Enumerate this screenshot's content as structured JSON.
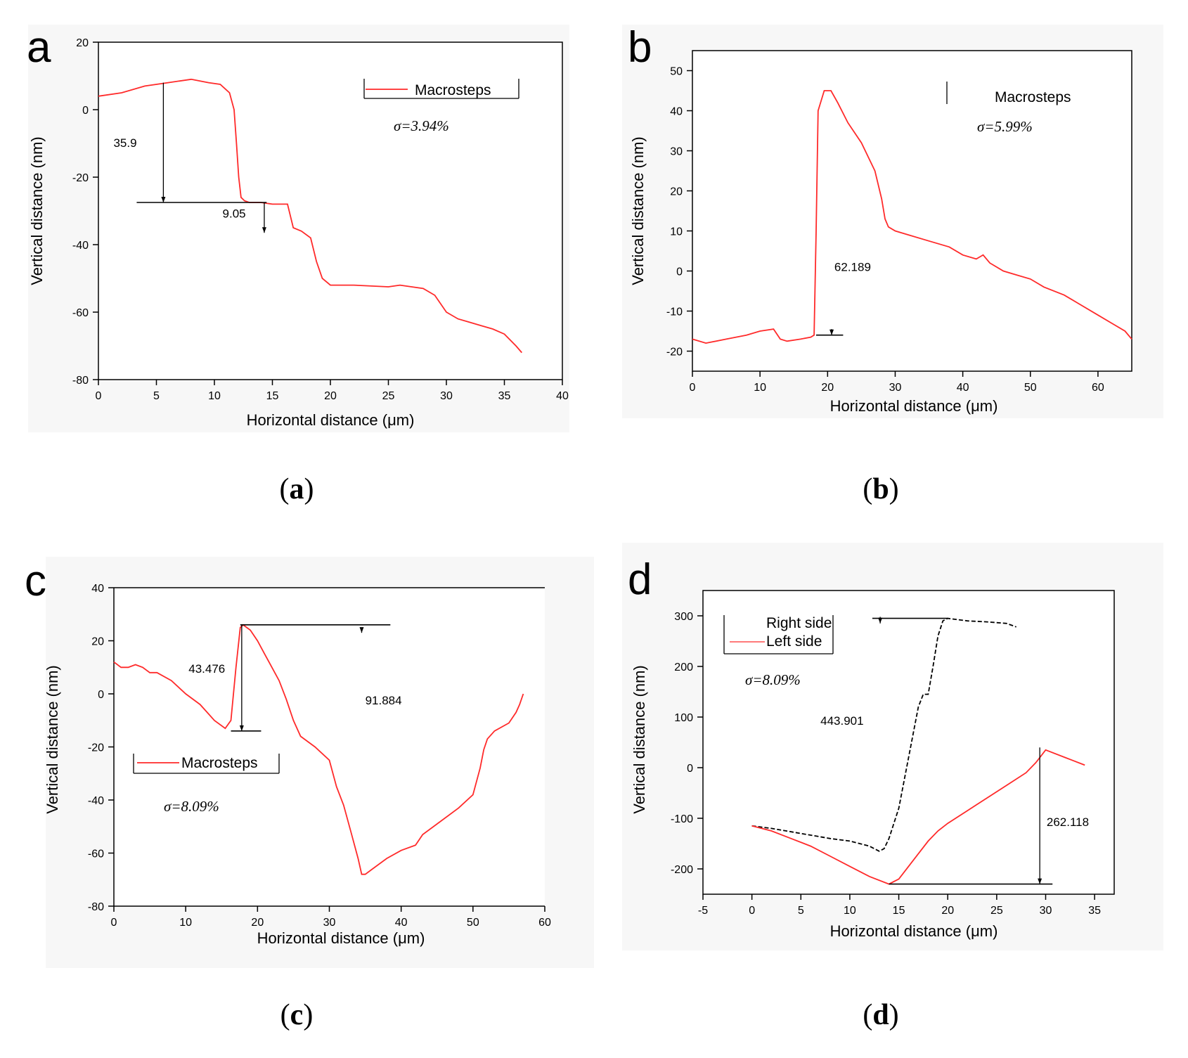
{
  "chart_data": [
    {
      "type": "line",
      "panel_letter": "a",
      "caption": "a",
      "xlabel": "Horizontal distance (μm)",
      "ylabel": "Vertical distance (nm)",
      "xlim": [
        0,
        40
      ],
      "ylim": [
        -80,
        20
      ],
      "xticks": [
        0,
        5,
        10,
        15,
        20,
        25,
        30,
        35,
        40
      ],
      "yticks": [
        -80,
        -60,
        -40,
        -20,
        0,
        20
      ],
      "grid": false,
      "legend_placement": "top-right",
      "series": [
        {
          "name": "Macrosteps",
          "color": "#ff2a2a",
          "style": "solid",
          "x": [
            0,
            2,
            4,
            6,
            8,
            9.5,
            10.5,
            11.3,
            11.7,
            11.9,
            12.1,
            12.3,
            12.6,
            13,
            14,
            15,
            16.3,
            16.8,
            17.5,
            18.3,
            18.8,
            19.3,
            20,
            22,
            25,
            26,
            27,
            28,
            29,
            30,
            31,
            32,
            33,
            34,
            35,
            36,
            36.5
          ],
          "y": [
            4,
            5,
            7,
            8,
            9,
            8,
            7.5,
            5,
            0,
            -10,
            -20,
            -26,
            -27,
            -27.5,
            -27.5,
            -28,
            -28,
            -35,
            -36,
            -38,
            -45,
            -50,
            -52,
            -52,
            -52.5,
            -52,
            -52.5,
            -53,
            -55,
            -60,
            -62,
            -63,
            -64,
            -65,
            -66.5,
            -70,
            -72
          ]
        }
      ],
      "annotations": [
        {
          "text": "35.9",
          "x": 1.3,
          "y": -11
        },
        {
          "text": "9.05",
          "x": 10.7,
          "y": -32
        },
        {
          "type": "hline",
          "y": -27.5,
          "x0": 3.3,
          "x1": 14.5
        },
        {
          "type": "arrow",
          "x": 5.6,
          "y0": 8,
          "y1": -27.5
        },
        {
          "type": "arrow",
          "x": 14.3,
          "y0": -27.5,
          "y1": -36.5
        }
      ],
      "sigma_text": "σ=3.94%"
    },
    {
      "type": "line",
      "panel_letter": "b",
      "caption": "b",
      "xlabel": "Horizontal distance (μm)",
      "ylabel": "Vertical distance (nm)",
      "xlim": [
        0,
        65
      ],
      "ylim": [
        -25,
        55
      ],
      "xticks": [
        0,
        10,
        20,
        30,
        40,
        50,
        60
      ],
      "yticks": [
        -20,
        -10,
        0,
        10,
        20,
        30,
        40,
        50
      ],
      "grid": false,
      "legend_placement": "top-right",
      "series": [
        {
          "name": "Macrosteps",
          "color": "#ff2a2a",
          "style": "solid",
          "x": [
            0,
            2,
            5,
            8,
            10,
            12,
            13,
            14,
            16,
            17.5,
            18,
            18.3,
            18.6,
            19.5,
            20.5,
            21.5,
            23,
            25,
            27,
            28,
            28.5,
            29,
            30,
            32,
            35,
            38,
            40,
            42,
            43,
            44,
            46,
            48,
            50,
            52,
            55,
            57,
            60,
            62,
            64,
            65
          ],
          "y": [
            -17,
            -18,
            -17,
            -16,
            -15,
            -14.5,
            -17,
            -17.5,
            -17,
            -16.5,
            -16,
            10,
            40,
            45,
            45,
            42,
            37,
            32,
            25,
            18,
            13,
            11,
            10,
            9,
            7.5,
            6,
            4,
            3,
            4,
            2,
            0,
            -1,
            -2,
            -4,
            -6,
            -8,
            -11,
            -13,
            -15,
            -17
          ]
        }
      ],
      "annotations": [
        {
          "text": "62.189",
          "x": 21,
          "y": 0
        },
        {
          "type": "hline",
          "y": -16,
          "x0": 18.3,
          "x1": 22.3
        },
        {
          "type": "arrow",
          "x": 20.6,
          "y0": -14.5,
          "y1": -16
        }
      ],
      "sigma_text": "σ=5.99%"
    },
    {
      "type": "line",
      "panel_letter": "c",
      "caption": "c",
      "xlabel": "Horizontal distance (μm)",
      "ylabel": "Vertical distance (nm)",
      "xlim": [
        0,
        60
      ],
      "ylim": [
        -80,
        40
      ],
      "xticks": [
        0,
        10,
        20,
        30,
        40,
        50,
        60
      ],
      "yticks": [
        -80,
        -60,
        -40,
        -20,
        0,
        20,
        40
      ],
      "grid": false,
      "legend_placement": "bottom-left",
      "series": [
        {
          "name": "Macrosteps",
          "color": "#ff2a2a",
          "style": "solid",
          "x": [
            0,
            1,
            2,
            3,
            4,
            5,
            6,
            8,
            10,
            12,
            14,
            15.5,
            16.3,
            17,
            17.6,
            18,
            19,
            20,
            21,
            22,
            23,
            24,
            25,
            26,
            28,
            30,
            31,
            32,
            33,
            34,
            34.5,
            35,
            36,
            38,
            40,
            42,
            43,
            45,
            48,
            50,
            51,
            51.5,
            52,
            53,
            55,
            56,
            56.5,
            57
          ],
          "y": [
            12,
            10,
            10,
            11,
            10,
            8,
            8,
            5,
            0,
            -4,
            -10,
            -13,
            -10,
            10,
            25,
            26,
            24,
            20,
            15,
            10,
            5,
            -2,
            -10,
            -16,
            -20,
            -25,
            -35,
            -42,
            -52,
            -62,
            -68,
            -68,
            -66,
            -62,
            -59,
            -57,
            -53,
            -49,
            -43,
            -38,
            -28,
            -21,
            -17,
            -14,
            -11,
            -7,
            -4,
            0
          ]
        }
      ],
      "annotations": [
        {
          "text": "43.476",
          "x": 10.4,
          "y": 8
        },
        {
          "text": "91.884",
          "x": 35,
          "y": -4
        },
        {
          "type": "hline",
          "y": 26,
          "x0": 17.6,
          "x1": 38.5
        },
        {
          "type": "hline",
          "y": -14,
          "x0": 16.3,
          "x1": 20.5
        },
        {
          "type": "arrow",
          "x": 17.8,
          "y0": 26,
          "y1": -14
        },
        {
          "type": "arrow",
          "x": 34.5,
          "y0": 25,
          "y1": 23
        }
      ],
      "sigma_text": "σ=8.09%"
    },
    {
      "type": "line",
      "panel_letter": "d",
      "caption": "d",
      "xlabel": "Horizontal distance (μm)",
      "ylabel": "Vertical distance (nm)",
      "xlim": [
        -5,
        37
      ],
      "ylim": [
        -250,
        350
      ],
      "xticks": [
        -5,
        0,
        5,
        10,
        15,
        20,
        25,
        30,
        35
      ],
      "yticks": [
        -200,
        -100,
        0,
        100,
        200,
        300
      ],
      "grid": false,
      "legend_placement": "top-left",
      "series": [
        {
          "name": "Right side",
          "color": "#000000",
          "style": "dashed",
          "x": [
            0,
            2,
            5,
            8,
            10,
            12,
            13,
            13.5,
            14,
            15,
            16,
            17,
            17.5,
            18,
            18.5,
            19,
            19.5,
            20,
            22,
            24,
            26,
            27
          ],
          "y": [
            -115,
            -120,
            -130,
            -140,
            -145,
            -155,
            -165,
            -160,
            -140,
            -80,
            20,
            120,
            145,
            145,
            200,
            260,
            290,
            295,
            290,
            288,
            285,
            278
          ]
        },
        {
          "name": "Left side",
          "color": "#ff2a2a",
          "style": "solid",
          "x": [
            0,
            2,
            4,
            6,
            8,
            10,
            12,
            14,
            15,
            16,
            17,
            18,
            19,
            20,
            22,
            24,
            26,
            28,
            29,
            30,
            32,
            34
          ],
          "y": [
            -115,
            -125,
            -140,
            -155,
            -175,
            -195,
            -215,
            -230,
            -220,
            -195,
            -170,
            -145,
            -125,
            -110,
            -85,
            -60,
            -35,
            -10,
            10,
            35,
            20,
            5
          ]
        }
      ],
      "annotations": [
        {
          "text": "443.901",
          "x": 7,
          "y": 85
        },
        {
          "text": "262.118",
          "x": 30.1,
          "y": -115
        },
        {
          "type": "hline",
          "y": 295,
          "x0": 12.3,
          "x1": 20
        },
        {
          "type": "hline",
          "y": -230,
          "x0": 14,
          "x1": 30.7
        },
        {
          "type": "arrow",
          "x": 29.4,
          "y0": 40,
          "y1": -230
        },
        {
          "type": "arrow",
          "x": 13.1,
          "y0": 298,
          "y1": 285
        }
      ],
      "sigma_text": "σ=8.09%"
    }
  ]
}
